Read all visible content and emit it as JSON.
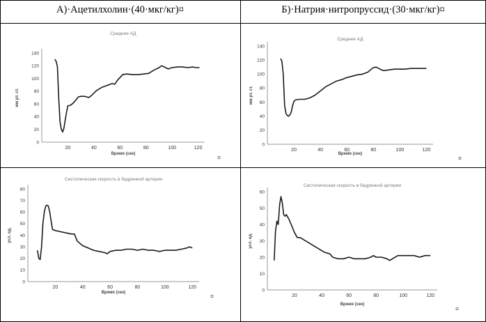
{
  "headers": {
    "left": "А)·Ацетилхолин·(40·мкг/кг)¤",
    "right": "Б)·Натрия·нитропруссид·(30·мкг/кг)¤"
  },
  "cell_mark": "¤",
  "charts": [
    {
      "id": "tl",
      "type": "line",
      "title": "Среднее АД",
      "xlabel": "Время (сек)",
      "ylabel": "мм рт. ст.",
      "xlim": [
        0,
        125
      ],
      "ylim": [
        0,
        140
      ],
      "xticks": [
        20,
        40,
        60,
        80,
        100,
        120
      ],
      "yticks": [
        0,
        20,
        40,
        60,
        80,
        100,
        120,
        140
      ],
      "x": [
        10,
        11,
        12,
        13,
        14,
        15,
        16,
        17,
        18,
        19,
        20,
        22,
        24,
        26,
        28,
        30,
        33,
        36,
        38,
        42,
        46,
        50,
        54,
        56,
        58,
        62,
        65,
        70,
        74,
        78,
        82,
        86,
        90,
        92,
        94,
        97,
        100,
        104,
        108,
        112,
        116,
        118,
        121
      ],
      "y": [
        130,
        127,
        118,
        70,
        32,
        20,
        16,
        22,
        35,
        47,
        57,
        58,
        61,
        66,
        71,
        72,
        72,
        70,
        73,
        81,
        86,
        89,
        92,
        91,
        97,
        106,
        107,
        106,
        106,
        107,
        108,
        113,
        117,
        120,
        118,
        115,
        117,
        118,
        118,
        117,
        118,
        117,
        117
      ]
    },
    {
      "id": "tr",
      "type": "line",
      "title": "Среднее АД",
      "xlabel": "Время (сек)",
      "ylabel": "мм рт. ст.",
      "xlim": [
        0,
        125
      ],
      "ylim": [
        0,
        140
      ],
      "xticks": [
        20,
        40,
        60,
        80,
        100,
        120
      ],
      "yticks": [
        0,
        20,
        40,
        60,
        80,
        100,
        120,
        140
      ],
      "x": [
        10,
        11,
        12,
        13,
        14,
        15,
        16,
        17,
        18,
        19,
        20,
        21,
        24,
        28,
        32,
        36,
        40,
        44,
        48,
        52,
        56,
        60,
        64,
        68,
        72,
        76,
        79,
        80,
        82,
        84,
        86,
        88,
        92,
        96,
        100,
        104,
        108,
        112,
        116,
        120
      ],
      "y": [
        122,
        118,
        100,
        55,
        44,
        41,
        40,
        42,
        46,
        55,
        61,
        63,
        64,
        64,
        66,
        70,
        76,
        82,
        86,
        90,
        92,
        95,
        97,
        99,
        100,
        103,
        108,
        109,
        110,
        108,
        106,
        105,
        106,
        107,
        107,
        107,
        108,
        108,
        108,
        108
      ]
    },
    {
      "id": "bl",
      "type": "line",
      "title": "Систолическая скорость в бедренной артерии",
      "xlabel": "Время (сек)",
      "ylabel": "усл. ед.",
      "xlim": [
        0,
        125
      ],
      "ylim": [
        0,
        80
      ],
      "xticks": [
        20,
        40,
        60,
        80,
        100,
        120
      ],
      "yticks": [
        0,
        10,
        20,
        30,
        40,
        50,
        60,
        70,
        80
      ],
      "x": [
        7,
        8,
        9,
        10,
        11,
        12,
        13,
        14,
        15,
        16,
        17,
        18,
        20,
        24,
        28,
        32,
        34,
        36,
        40,
        44,
        48,
        52,
        56,
        58,
        60,
        64,
        68,
        72,
        76,
        80,
        84,
        88,
        92,
        96,
        100,
        104,
        108,
        112,
        116,
        118,
        120
      ],
      "y": [
        27,
        20,
        19,
        30,
        50,
        60,
        65,
        66,
        65,
        60,
        52,
        45,
        44,
        43,
        42,
        41,
        41,
        35,
        31,
        29,
        27,
        26,
        25,
        24,
        26,
        27,
        27,
        28,
        28,
        27,
        28,
        27,
        27,
        26,
        27,
        27,
        27,
        28,
        29,
        30,
        29
      ]
    },
    {
      "id": "br",
      "type": "line",
      "title": "Систолическая скорость в бедренной артерии",
      "xlabel": "Время (сек)",
      "ylabel": "усл. ед.",
      "xlim": [
        0,
        125
      ],
      "ylim": [
        0,
        60
      ],
      "xticks": [
        20,
        40,
        60,
        80,
        100,
        120
      ],
      "yticks": [
        0,
        10,
        20,
        30,
        40,
        50,
        60
      ],
      "x": [
        5,
        6,
        7,
        8,
        9,
        10,
        11,
        12,
        13,
        14,
        16,
        18,
        20,
        22,
        24,
        26,
        30,
        36,
        42,
        46,
        48,
        52,
        56,
        60,
        64,
        68,
        72,
        76,
        78,
        80,
        84,
        88,
        90,
        92,
        96,
        100,
        104,
        108,
        112,
        116,
        120
      ],
      "y": [
        18,
        36,
        42,
        40,
        52,
        57,
        53,
        46,
        45,
        46,
        43,
        39,
        35,
        32,
        32,
        31,
        29,
        26,
        23,
        22,
        20,
        19,
        19,
        20,
        19,
        19,
        19,
        20,
        21,
        20,
        20,
        19,
        18,
        19,
        21,
        21,
        21,
        21,
        20,
        21,
        21
      ]
    }
  ]
}
